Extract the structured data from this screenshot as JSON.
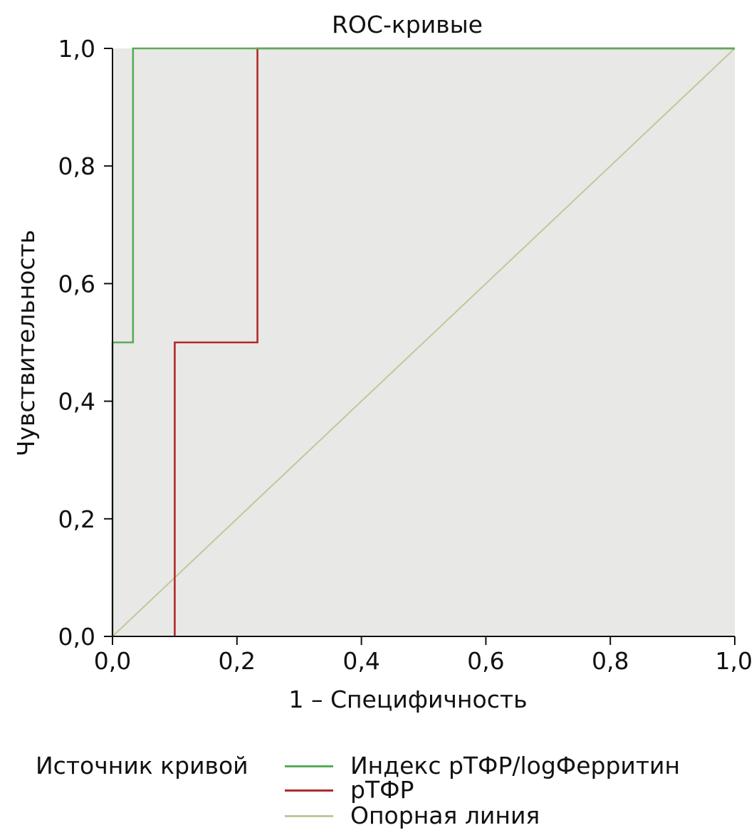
{
  "chart_data": {
    "type": "line",
    "title": "ROC-кривые",
    "xlabel": "1 – Специфичность",
    "ylabel": "Чувствительность",
    "xlim": [
      0,
      1
    ],
    "ylim": [
      0,
      1
    ],
    "x_ticks": [
      "0,0",
      "0,2",
      "0,4",
      "0,6",
      "0,8",
      "1,0"
    ],
    "y_ticks": [
      "0,0",
      "0,2",
      "0,4",
      "0,6",
      "0,8",
      "1,0"
    ],
    "grid": false,
    "plot_background": "#e8e8e6",
    "legend": {
      "title": "Источник кривой",
      "position": "bottom"
    },
    "series": [
      {
        "name": "Индекс рТФР/logФерритин",
        "color": "#5aab5a",
        "points": [
          [
            0,
            0
          ],
          [
            0,
            0.5
          ],
          [
            0.033,
            0.5
          ],
          [
            0.033,
            1.0
          ],
          [
            1.0,
            1.0
          ]
        ]
      },
      {
        "name": "рТФР",
        "color": "#b02a2a",
        "points": [
          [
            0.1,
            0
          ],
          [
            0.1,
            0.5
          ],
          [
            0.233,
            0.5
          ],
          [
            0.233,
            1.0
          ],
          [
            1.0,
            1.0
          ]
        ]
      },
      {
        "name": "Опорная линия",
        "color": "#c2c79a",
        "points": [
          [
            0,
            0
          ],
          [
            1,
            1
          ]
        ]
      }
    ]
  }
}
